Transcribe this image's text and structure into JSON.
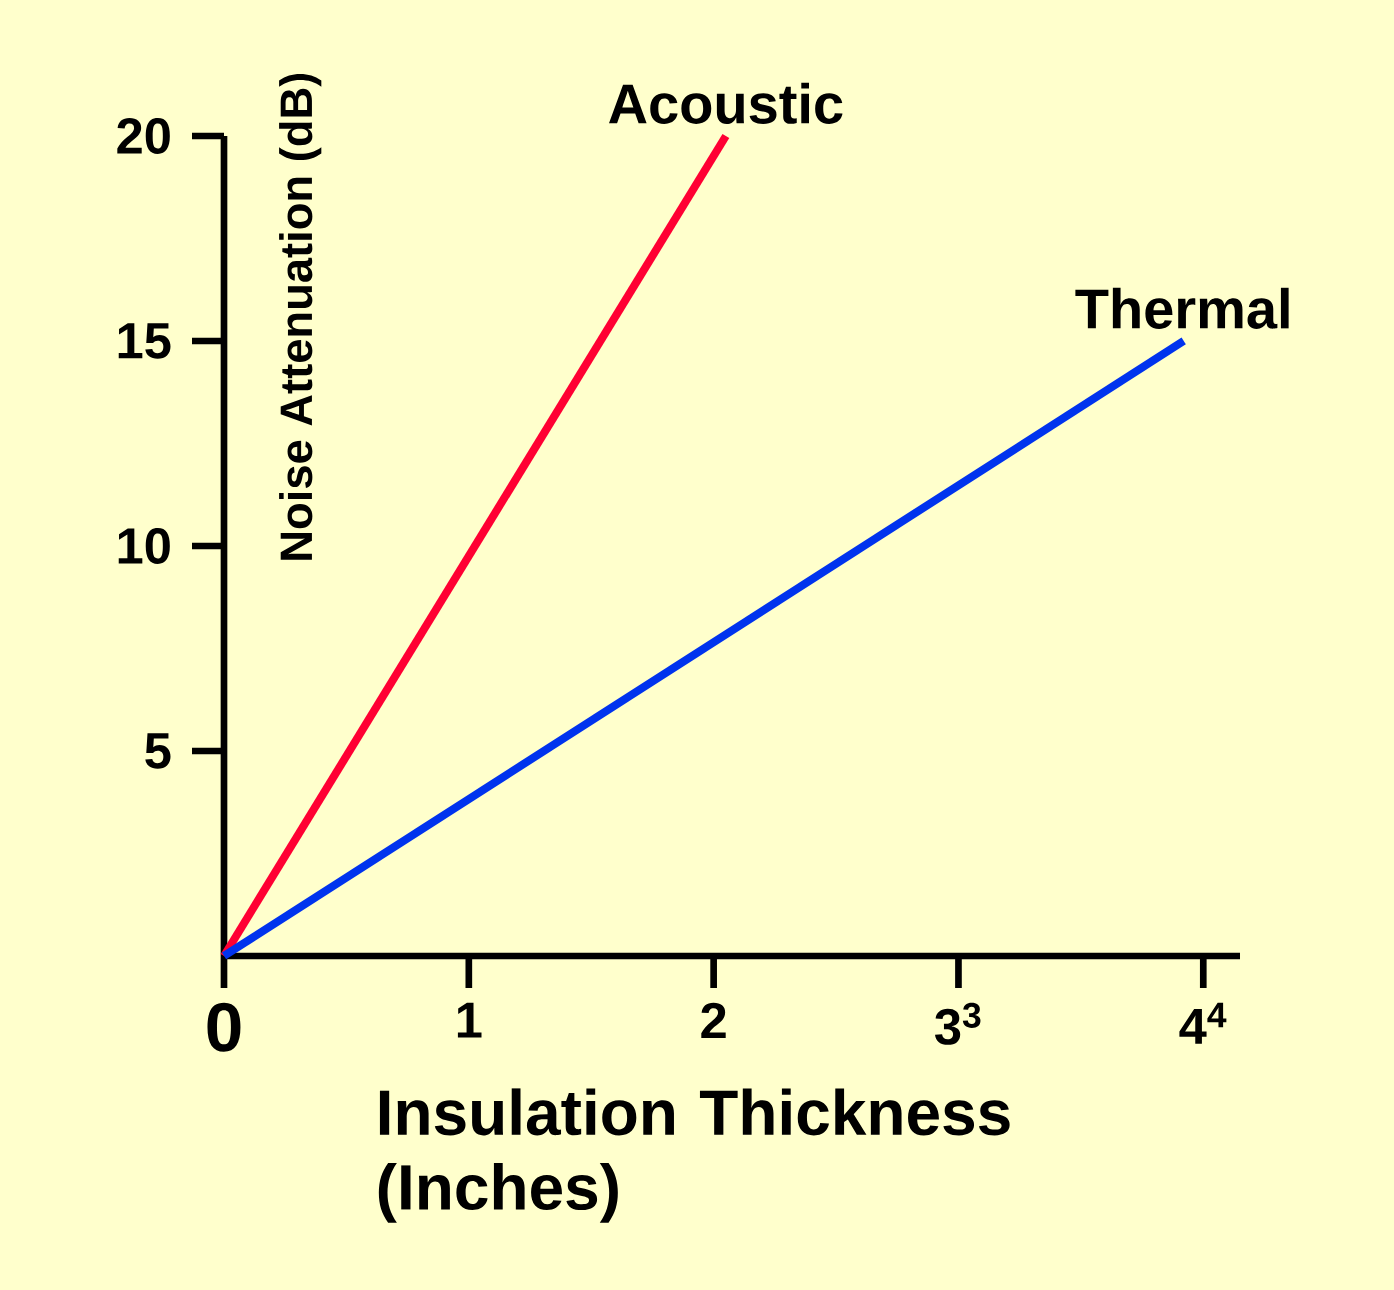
{
  "chart_data": {
    "type": "line",
    "xlabel": "Insulation Thickness (Inches)",
    "ylabel": "Noise Attenuation (dB)",
    "x": [
      0,
      2.05
    ],
    "series": [
      {
        "name": "Acoustic",
        "color": "#ff0033",
        "values": [
          0,
          20
        ]
      },
      {
        "name": "Thermal",
        "color": "#0033ee",
        "x": [
          0,
          3.92
        ],
        "values": [
          0,
          15
        ]
      }
    ],
    "xlim": [
      0,
      4.15
    ],
    "ylim": [
      0,
      20
    ],
    "xticks": [
      {
        "value": 0,
        "label": "0"
      },
      1,
      2,
      {
        "value": 3,
        "label": "3$^{3}$"
      },
      {
        "value": 4,
        "label": "4$^{4}$"
      }
    ],
    "yticks": [
      5,
      10,
      15,
      20
    ],
    "marker": "none",
    "line_style": "solid"
  }
}
